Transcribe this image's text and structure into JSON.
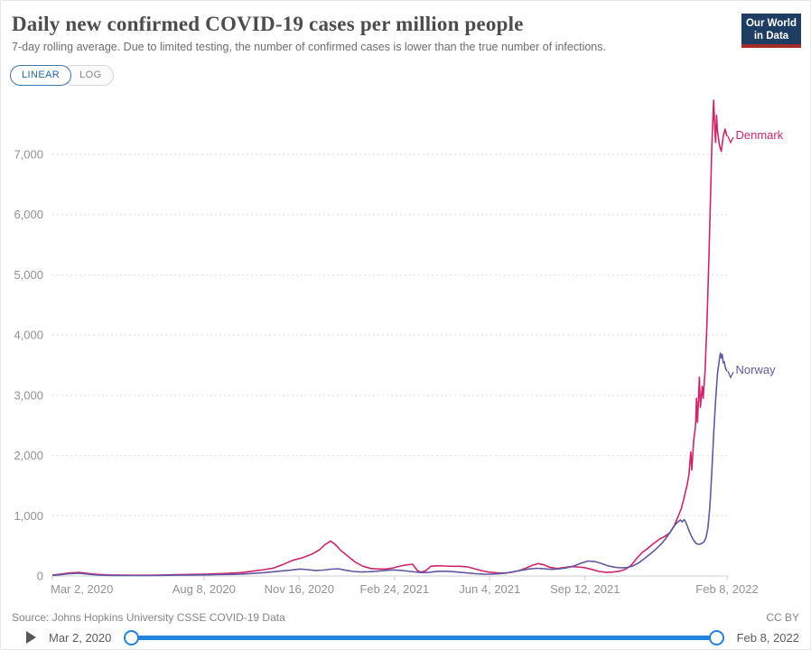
{
  "header": {
    "title": "Daily new confirmed COVID-19 cases per million people",
    "subtitle": "7-day rolling average. Due to limited testing, the number of confirmed cases is lower than the true number of infections.",
    "logo": {
      "line1": "Our World",
      "line2": "in Data",
      "bg": "#1d3d63",
      "accent": "#a52a2a"
    }
  },
  "controls": {
    "linear_label": "LINEAR",
    "log_label": "LOG",
    "selected": "LINEAR"
  },
  "chart_data": {
    "type": "line",
    "title": "Daily new confirmed COVID-19 cases per million people",
    "x_axis": {
      "start_label": "Mar 2, 2020",
      "end_label": "Feb 8, 2022",
      "domain_days": [
        0,
        708
      ]
    },
    "x_ticks": [
      {
        "day": 0,
        "label": "Mar 2, 2020"
      },
      {
        "day": 159,
        "label": "Aug 8, 2020"
      },
      {
        "day": 259,
        "label": "Nov 16, 2020"
      },
      {
        "day": 359,
        "label": "Feb 24, 2021"
      },
      {
        "day": 459,
        "label": "Jun 4, 2021"
      },
      {
        "day": 559,
        "label": "Sep 12, 2021"
      },
      {
        "day": 708,
        "label": "Feb 8, 2022"
      }
    ],
    "y_ticks": [
      0,
      1000,
      2000,
      3000,
      4000,
      5000,
      6000,
      7000
    ],
    "ylim": [
      0,
      7950
    ],
    "grid": "dashed-horizontal",
    "legend_position": "end-of-line",
    "series": [
      {
        "name": "Denmark",
        "color": "#ce256c",
        "points": [
          [
            0,
            15
          ],
          [
            8,
            30
          ],
          [
            18,
            50
          ],
          [
            28,
            58
          ],
          [
            38,
            40
          ],
          [
            48,
            25
          ],
          [
            58,
            18
          ],
          [
            70,
            14
          ],
          [
            85,
            12
          ],
          [
            100,
            12
          ],
          [
            115,
            16
          ],
          [
            130,
            22
          ],
          [
            145,
            25
          ],
          [
            160,
            30
          ],
          [
            172,
            38
          ],
          [
            185,
            45
          ],
          [
            198,
            55
          ],
          [
            210,
            80
          ],
          [
            222,
            105
          ],
          [
            232,
            130
          ],
          [
            242,
            190
          ],
          [
            252,
            260
          ],
          [
            262,
            300
          ],
          [
            272,
            360
          ],
          [
            280,
            430
          ],
          [
            286,
            520
          ],
          [
            292,
            580
          ],
          [
            297,
            520
          ],
          [
            303,
            420
          ],
          [
            310,
            330
          ],
          [
            318,
            230
          ],
          [
            326,
            160
          ],
          [
            334,
            125
          ],
          [
            342,
            115
          ],
          [
            350,
            115
          ],
          [
            358,
            135
          ],
          [
            365,
            165
          ],
          [
            372,
            185
          ],
          [
            378,
            195
          ],
          [
            383,
            90
          ],
          [
            387,
            65
          ],
          [
            392,
            90
          ],
          [
            397,
            160
          ],
          [
            404,
            170
          ],
          [
            412,
            165
          ],
          [
            420,
            160
          ],
          [
            428,
            160
          ],
          [
            436,
            150
          ],
          [
            443,
            120
          ],
          [
            450,
            90
          ],
          [
            458,
            65
          ],
          [
            466,
            52
          ],
          [
            474,
            50
          ],
          [
            482,
            60
          ],
          [
            490,
            90
          ],
          [
            497,
            130
          ],
          [
            504,
            180
          ],
          [
            510,
            205
          ],
          [
            516,
            185
          ],
          [
            523,
            140
          ],
          [
            530,
            125
          ],
          [
            537,
            140
          ],
          [
            544,
            155
          ],
          [
            551,
            150
          ],
          [
            558,
            140
          ],
          [
            566,
            110
          ],
          [
            574,
            75
          ],
          [
            581,
            62
          ],
          [
            588,
            65
          ],
          [
            595,
            80
          ],
          [
            601,
            110
          ],
          [
            607,
            170
          ],
          [
            613,
            290
          ],
          [
            619,
            390
          ],
          [
            625,
            460
          ],
          [
            631,
            540
          ],
          [
            637,
            610
          ],
          [
            643,
            660
          ],
          [
            648,
            720
          ],
          [
            653,
            850
          ],
          [
            657,
            1000
          ],
          [
            660,
            1120
          ],
          [
            663,
            1300
          ],
          [
            666,
            1500
          ],
          [
            668,
            1680
          ],
          [
            670,
            2060
          ],
          [
            671,
            1760
          ],
          [
            673,
            2250
          ],
          [
            675,
            2500
          ],
          [
            676,
            2950
          ],
          [
            677,
            2550
          ],
          [
            679,
            3300
          ],
          [
            680,
            2800
          ],
          [
            682,
            3150
          ],
          [
            683,
            2950
          ],
          [
            685,
            3400
          ],
          [
            687,
            4200
          ],
          [
            689,
            5300
          ],
          [
            691,
            6500
          ],
          [
            692,
            7100
          ],
          [
            694,
            7900
          ],
          [
            695,
            7500
          ],
          [
            696,
            7200
          ],
          [
            697,
            7650
          ],
          [
            698,
            7400
          ],
          [
            700,
            7150
          ],
          [
            702,
            7050
          ],
          [
            704,
            7300
          ],
          [
            706,
            7420
          ],
          [
            708,
            7300
          ]
        ]
      },
      {
        "name": "Norway",
        "color": "#6058a3",
        "points": [
          [
            0,
            8
          ],
          [
            8,
            20
          ],
          [
            18,
            38
          ],
          [
            28,
            45
          ],
          [
            38,
            28
          ],
          [
            48,
            15
          ],
          [
            58,
            10
          ],
          [
            70,
            8
          ],
          [
            85,
            7
          ],
          [
            100,
            8
          ],
          [
            115,
            10
          ],
          [
            130,
            13
          ],
          [
            145,
            15
          ],
          [
            160,
            18
          ],
          [
            172,
            22
          ],
          [
            185,
            26
          ],
          [
            198,
            32
          ],
          [
            210,
            42
          ],
          [
            222,
            55
          ],
          [
            232,
            70
          ],
          [
            242,
            85
          ],
          [
            252,
            100
          ],
          [
            260,
            115
          ],
          [
            268,
            105
          ],
          [
            276,
            92
          ],
          [
            284,
            98
          ],
          [
            292,
            112
          ],
          [
            300,
            120
          ],
          [
            308,
            95
          ],
          [
            316,
            75
          ],
          [
            324,
            66
          ],
          [
            332,
            70
          ],
          [
            340,
            78
          ],
          [
            348,
            88
          ],
          [
            356,
            100
          ],
          [
            364,
            95
          ],
          [
            372,
            82
          ],
          [
            380,
            68
          ],
          [
            388,
            56
          ],
          [
            396,
            62
          ],
          [
            404,
            78
          ],
          [
            412,
            80
          ],
          [
            420,
            72
          ],
          [
            428,
            62
          ],
          [
            436,
            50
          ],
          [
            444,
            38
          ],
          [
            452,
            32
          ],
          [
            460,
            30
          ],
          [
            468,
            36
          ],
          [
            476,
            48
          ],
          [
            484,
            70
          ],
          [
            492,
            95
          ],
          [
            500,
            115
          ],
          [
            508,
            128
          ],
          [
            516,
            120
          ],
          [
            524,
            110
          ],
          [
            532,
            118
          ],
          [
            540,
            135
          ],
          [
            548,
            170
          ],
          [
            555,
            215
          ],
          [
            562,
            248
          ],
          [
            569,
            242
          ],
          [
            576,
            210
          ],
          [
            583,
            170
          ],
          [
            590,
            145
          ],
          [
            597,
            135
          ],
          [
            603,
            140
          ],
          [
            609,
            165
          ],
          [
            615,
            215
          ],
          [
            621,
            285
          ],
          [
            627,
            360
          ],
          [
            633,
            440
          ],
          [
            639,
            530
          ],
          [
            644,
            630
          ],
          [
            649,
            740
          ],
          [
            653,
            840
          ],
          [
            656,
            890
          ],
          [
            659,
            930
          ],
          [
            661,
            900
          ],
          [
            663,
            935
          ],
          [
            665,
            885
          ],
          [
            667,
            800
          ],
          [
            670,
            680
          ],
          [
            673,
            590
          ],
          [
            676,
            535
          ],
          [
            679,
            525
          ],
          [
            682,
            545
          ],
          [
            684,
            570
          ],
          [
            686,
            640
          ],
          [
            688,
            800
          ],
          [
            690,
            1150
          ],
          [
            692,
            1700
          ],
          [
            694,
            2350
          ],
          [
            696,
            2900
          ],
          [
            698,
            3350
          ],
          [
            700,
            3600
          ],
          [
            701,
            3700
          ],
          [
            702,
            3620
          ],
          [
            703,
            3680
          ],
          [
            704,
            3540
          ],
          [
            705,
            3560
          ],
          [
            706,
            3480
          ],
          [
            707,
            3430
          ],
          [
            708,
            3400
          ]
        ]
      }
    ]
  },
  "footer": {
    "source": "Source: Johns Hopkins University CSSE COVID-19 Data",
    "license": "CC BY"
  },
  "timeline": {
    "start_label": "Mar 2, 2020",
    "end_label": "Feb 8, 2022",
    "track_color": "#2383dc"
  },
  "colors": {
    "grid": "#dedede",
    "axis": "#cfcfcf",
    "tick_text": "#929292"
  }
}
